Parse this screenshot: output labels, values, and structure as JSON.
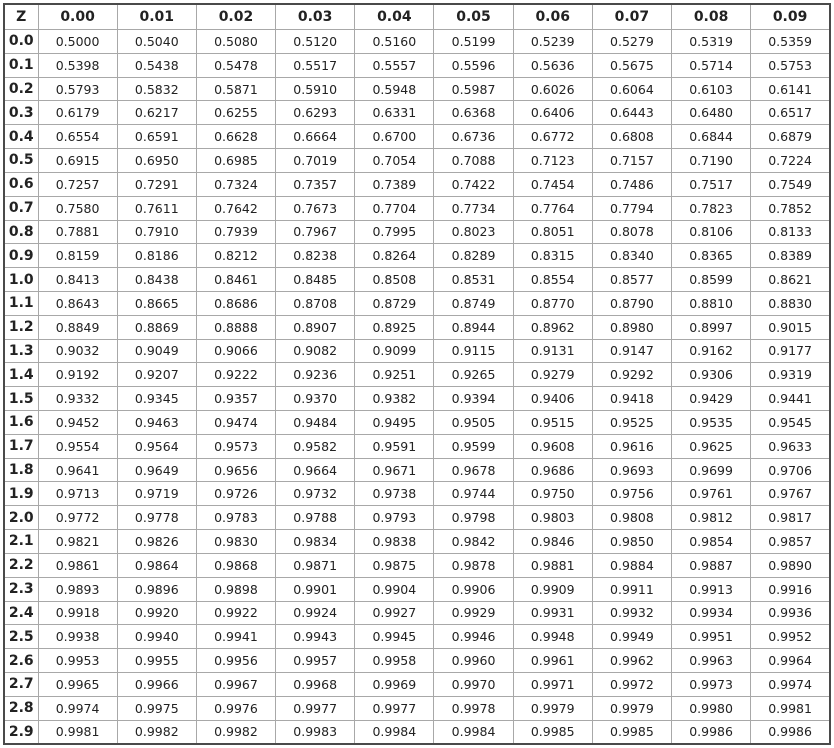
{
  "table": {
    "header": [
      "Z",
      "0.00",
      "0.01",
      "0.02",
      "0.03",
      "0.04",
      "0.05",
      "0.06",
      "0.07",
      "0.08",
      "0.09"
    ],
    "rows": [
      {
        "z": "0.0",
        "values": [
          "0.5000",
          "0.5040",
          "0.5080",
          "0.5120",
          "0.5160",
          "0.5199",
          "0.5239",
          "0.5279",
          "0.5319",
          "0.5359"
        ]
      },
      {
        "z": "0.1",
        "values": [
          "0.5398",
          "0.5438",
          "0.5478",
          "0.5517",
          "0.5557",
          "0.5596",
          "0.5636",
          "0.5675",
          "0.5714",
          "0.5753"
        ]
      },
      {
        "z": "0.2",
        "values": [
          "0.5793",
          "0.5832",
          "0.5871",
          "0.5910",
          "0.5948",
          "0.5987",
          "0.6026",
          "0.6064",
          "0.6103",
          "0.6141"
        ]
      },
      {
        "z": "0.3",
        "values": [
          "0.6179",
          "0.6217",
          "0.6255",
          "0.6293",
          "0.6331",
          "0.6368",
          "0.6406",
          "0.6443",
          "0.6480",
          "0.6517"
        ]
      },
      {
        "z": "0.4",
        "values": [
          "0.6554",
          "0.6591",
          "0.6628",
          "0.6664",
          "0.6700",
          "0.6736",
          "0.6772",
          "0.6808",
          "0.6844",
          "0.6879"
        ]
      },
      {
        "z": "0.5",
        "values": [
          "0.6915",
          "0.6950",
          "0.6985",
          "0.7019",
          "0.7054",
          "0.7088",
          "0.7123",
          "0.7157",
          "0.7190",
          "0.7224"
        ]
      },
      {
        "z": "0.6",
        "values": [
          "0.7257",
          "0.7291",
          "0.7324",
          "0.7357",
          "0.7389",
          "0.7422",
          "0.7454",
          "0.7486",
          "0.7517",
          "0.7549"
        ]
      },
      {
        "z": "0.7",
        "values": [
          "0.7580",
          "0.7611",
          "0.7642",
          "0.7673",
          "0.7704",
          "0.7734",
          "0.7764",
          "0.7794",
          "0.7823",
          "0.7852"
        ]
      },
      {
        "z": "0.8",
        "values": [
          "0.7881",
          "0.7910",
          "0.7939",
          "0.7967",
          "0.7995",
          "0.8023",
          "0.8051",
          "0.8078",
          "0.8106",
          "0.8133"
        ]
      },
      {
        "z": "0.9",
        "values": [
          "0.8159",
          "0.8186",
          "0.8212",
          "0.8238",
          "0.8264",
          "0.8289",
          "0.8315",
          "0.8340",
          "0.8365",
          "0.8389"
        ]
      },
      {
        "z": "1.0",
        "values": [
          "0.8413",
          "0.8438",
          "0.8461",
          "0.8485",
          "0.8508",
          "0.8531",
          "0.8554",
          "0.8577",
          "0.8599",
          "0.8621"
        ]
      },
      {
        "z": "1.1",
        "values": [
          "0.8643",
          "0.8665",
          "0.8686",
          "0.8708",
          "0.8729",
          "0.8749",
          "0.8770",
          "0.8790",
          "0.8810",
          "0.8830"
        ]
      },
      {
        "z": "1.2",
        "values": [
          "0.8849",
          "0.8869",
          "0.8888",
          "0.8907",
          "0.8925",
          "0.8944",
          "0.8962",
          "0.8980",
          "0.8997",
          "0.9015"
        ]
      },
      {
        "z": "1.3",
        "values": [
          "0.9032",
          "0.9049",
          "0.9066",
          "0.9082",
          "0.9099",
          "0.9115",
          "0.9131",
          "0.9147",
          "0.9162",
          "0.9177"
        ]
      },
      {
        "z": "1.4",
        "values": [
          "0.9192",
          "0.9207",
          "0.9222",
          "0.9236",
          "0.9251",
          "0.9265",
          "0.9279",
          "0.9292",
          "0.9306",
          "0.9319"
        ]
      },
      {
        "z": "1.5",
        "values": [
          "0.9332",
          "0.9345",
          "0.9357",
          "0.9370",
          "0.9382",
          "0.9394",
          "0.9406",
          "0.9418",
          "0.9429",
          "0.9441"
        ]
      },
      {
        "z": "1.6",
        "values": [
          "0.9452",
          "0.9463",
          "0.9474",
          "0.9484",
          "0.9495",
          "0.9505",
          "0.9515",
          "0.9525",
          "0.9535",
          "0.9545"
        ]
      },
      {
        "z": "1.7",
        "values": [
          "0.9554",
          "0.9564",
          "0.9573",
          "0.9582",
          "0.9591",
          "0.9599",
          "0.9608",
          "0.9616",
          "0.9625",
          "0.9633"
        ]
      },
      {
        "z": "1.8",
        "values": [
          "0.9641",
          "0.9649",
          "0.9656",
          "0.9664",
          "0.9671",
          "0.9678",
          "0.9686",
          "0.9693",
          "0.9699",
          "0.9706"
        ]
      },
      {
        "z": "1.9",
        "values": [
          "0.9713",
          "0.9719",
          "0.9726",
          "0.9732",
          "0.9738",
          "0.9744",
          "0.9750",
          "0.9756",
          "0.9761",
          "0.9767"
        ]
      },
      {
        "z": "2.0",
        "values": [
          "0.9772",
          "0.9778",
          "0.9783",
          "0.9788",
          "0.9793",
          "0.9798",
          "0.9803",
          "0.9808",
          "0.9812",
          "0.9817"
        ]
      },
      {
        "z": "2.1",
        "values": [
          "0.9821",
          "0.9826",
          "0.9830",
          "0.9834",
          "0.9838",
          "0.9842",
          "0.9846",
          "0.9850",
          "0.9854",
          "0.9857"
        ]
      },
      {
        "z": "2.2",
        "values": [
          "0.9861",
          "0.9864",
          "0.9868",
          "0.9871",
          "0.9875",
          "0.9878",
          "0.9881",
          "0.9884",
          "0.9887",
          "0.9890"
        ]
      },
      {
        "z": "2.3",
        "values": [
          "0.9893",
          "0.9896",
          "0.9898",
          "0.9901",
          "0.9904",
          "0.9906",
          "0.9909",
          "0.9911",
          "0.9913",
          "0.9916"
        ]
      },
      {
        "z": "2.4",
        "values": [
          "0.9918",
          "0.9920",
          "0.9922",
          "0.9924",
          "0.9927",
          "0.9929",
          "0.9931",
          "0.9932",
          "0.9934",
          "0.9936"
        ]
      },
      {
        "z": "2.5",
        "values": [
          "0.9938",
          "0.9940",
          "0.9941",
          "0.9943",
          "0.9945",
          "0.9946",
          "0.9948",
          "0.9949",
          "0.9951",
          "0.9952"
        ]
      },
      {
        "z": "2.6",
        "values": [
          "0.9953",
          "0.9955",
          "0.9956",
          "0.9957",
          "0.9958",
          "0.9960",
          "0.9961",
          "0.9962",
          "0.9963",
          "0.9964"
        ]
      },
      {
        "z": "2.7",
        "values": [
          "0.9965",
          "0.9966",
          "0.9967",
          "0.9968",
          "0.9969",
          "0.9970",
          "0.9971",
          "0.9972",
          "0.9973",
          "0.9974"
        ]
      },
      {
        "z": "2.8",
        "values": [
          "0.9974",
          "0.9975",
          "0.9976",
          "0.9977",
          "0.9977",
          "0.9978",
          "0.9979",
          "0.9979",
          "0.9980",
          "0.9981"
        ]
      },
      {
        "z": "2.9",
        "values": [
          "0.9981",
          "0.9982",
          "0.9982",
          "0.9983",
          "0.9984",
          "0.9984",
          "0.9985",
          "0.9985",
          "0.9986",
          "0.9986"
        ]
      }
    ]
  }
}
